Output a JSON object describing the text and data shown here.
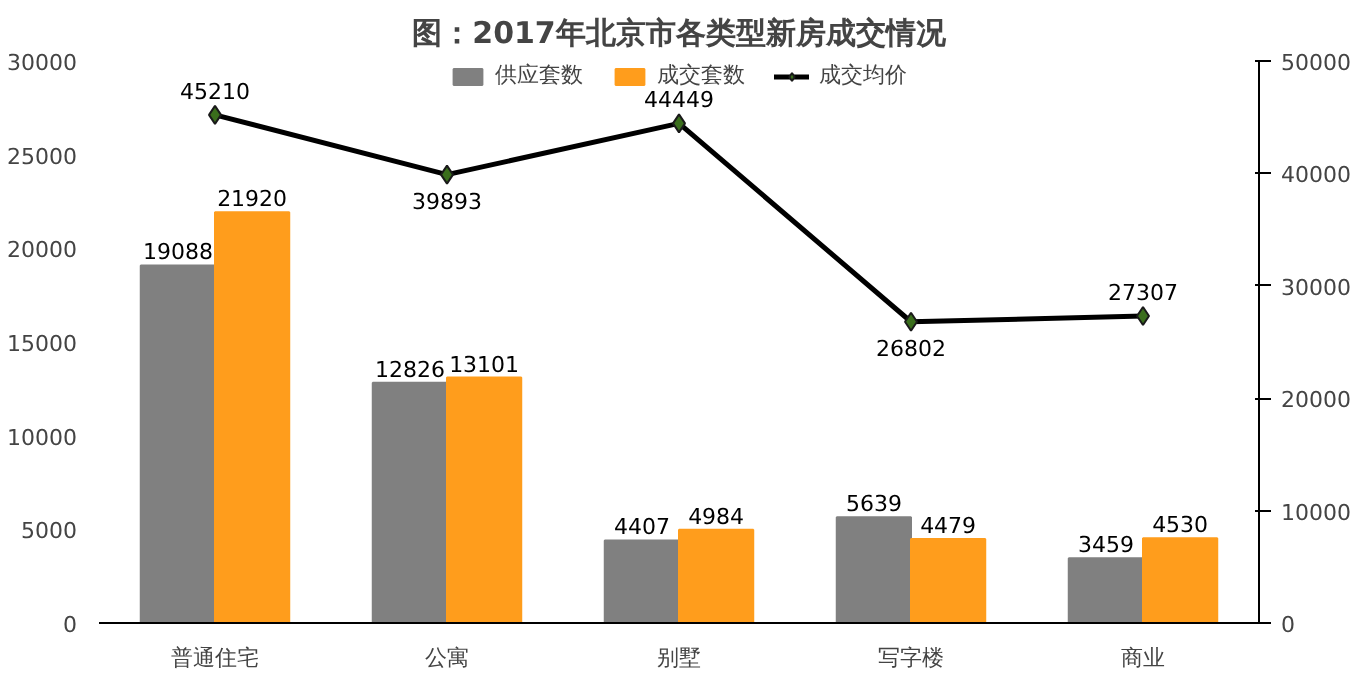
{
  "chart_data": {
    "type": "bar",
    "title": "图：2017年北京市各类型新房成交情况",
    "categories": [
      "普通住宅",
      "公寓",
      "别墅",
      "写字楼",
      "商业"
    ],
    "series": [
      {
        "name": "供应套数",
        "color": "#808080",
        "values": [
          19088,
          12826,
          4407,
          5639,
          3459
        ]
      },
      {
        "name": "成交套数",
        "color": "#ff9d1c",
        "values": [
          21920,
          13101,
          4984,
          4479,
          4530
        ]
      },
      {
        "name": "成交均价",
        "type": "line",
        "axis": "y2",
        "color": "#000000",
        "marker": "diamond",
        "values": [
          45210,
          39893,
          44449,
          26802,
          27307
        ]
      }
    ],
    "ylim": [
      0,
      30000
    ],
    "yticks": [
      0,
      5000,
      10000,
      15000,
      20000,
      25000,
      30000
    ],
    "y2lim": [
      0,
      50000
    ],
    "y2ticks": [
      0,
      10000,
      20000,
      30000,
      40000,
      50000
    ],
    "data_labels": true,
    "legend": "top",
    "grid": false
  }
}
